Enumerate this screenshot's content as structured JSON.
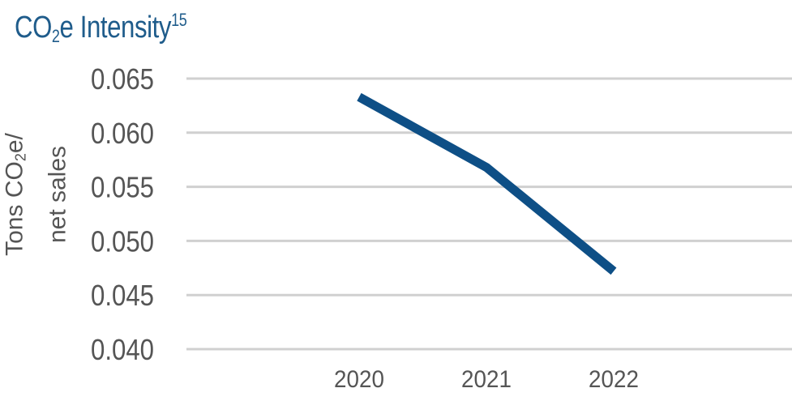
{
  "title": {
    "prefix": "CO",
    "sub": "2",
    "suffix": "e Intensity",
    "superscript": "15"
  },
  "ylabel": {
    "line1_prefix": "Tons CO",
    "line1_sub": "2",
    "line1_suffix": "e/",
    "line2": "net sales"
  },
  "colors": {
    "line": "#0e4f86",
    "title": "#1f5c8b",
    "grid": "#d0d0d0",
    "text": "#555555"
  },
  "chart_data": {
    "type": "line",
    "x": [
      "2020",
      "2021",
      "2022"
    ],
    "series": [
      {
        "values": [
          0.0633,
          0.0568,
          0.0472
        ]
      }
    ],
    "yticks": [
      "0.065",
      "0.060",
      "0.055",
      "0.050",
      "0.045",
      "0.040"
    ],
    "ylim": [
      0.04,
      0.065
    ],
    "grid": true,
    "legend": "none"
  }
}
